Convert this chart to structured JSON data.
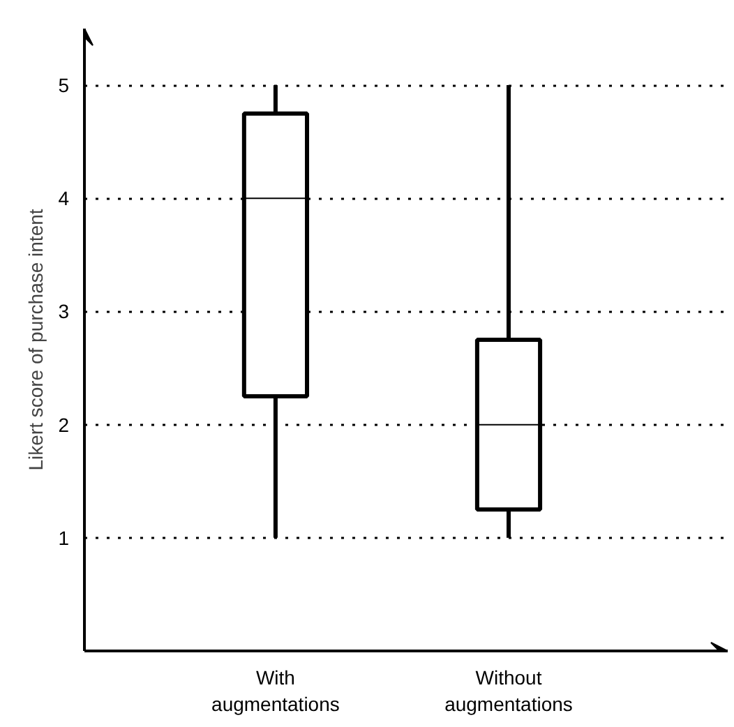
{
  "chart_data": {
    "type": "box",
    "ylabel": "Likert score of purchase intent",
    "categories": [
      "With augmentations",
      "Without augmentations"
    ],
    "boxes": [
      {
        "low": 1,
        "q1": 2.25,
        "median": 4,
        "q3": 4.75,
        "high": 5
      },
      {
        "low": 1,
        "q1": 1.25,
        "median": 2,
        "q3": 2.75,
        "high": 5
      }
    ],
    "ylim": [
      0,
      5.5
    ],
    "yticks": [
      1,
      2,
      3,
      4,
      5
    ],
    "grid": "y",
    "line_style": "dotted"
  }
}
